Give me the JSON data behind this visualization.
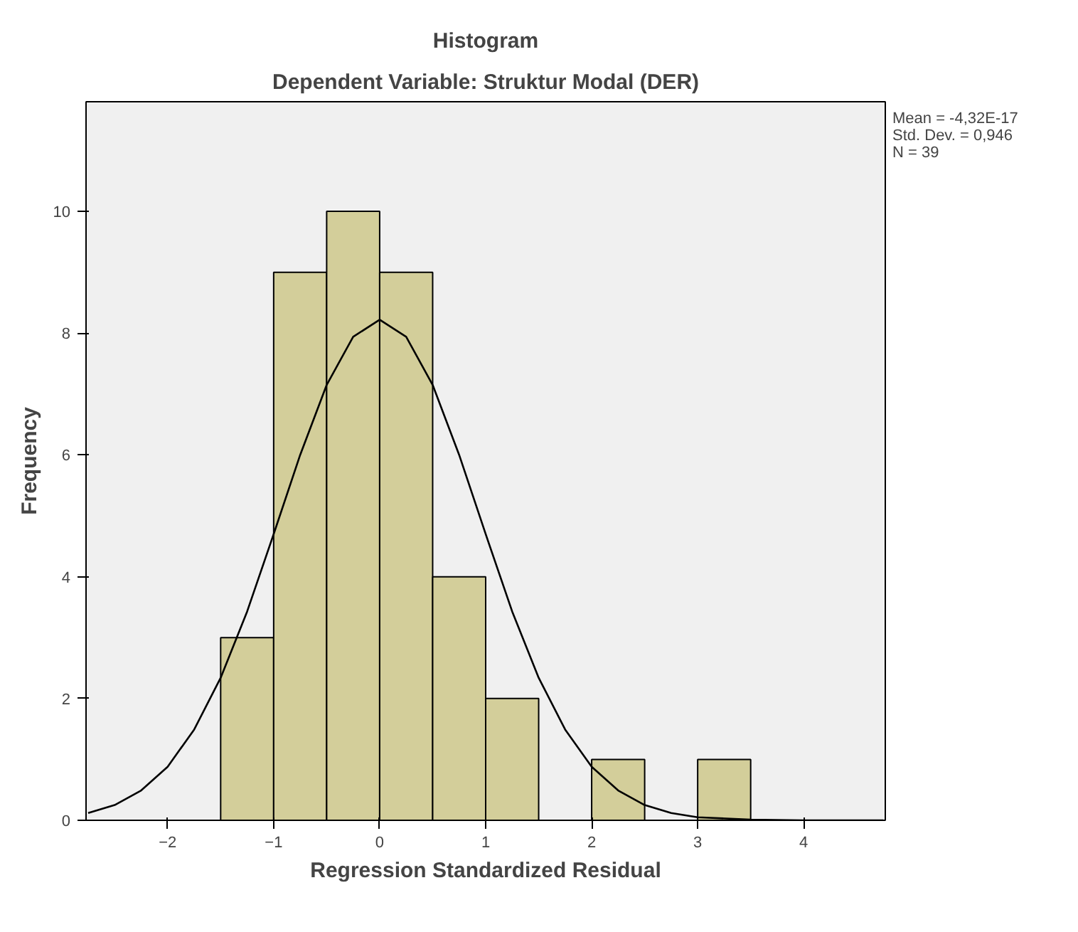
{
  "chart_data": {
    "type": "histogram",
    "title": "Histogram",
    "subtitle": "Dependent Variable: Struktur Modal (DER)",
    "xlabel": "Regression Standardized Residual",
    "ylabel": "Frequency",
    "bins": [
      -1.5,
      -1.0,
      -0.5,
      0.0,
      0.5,
      1.0,
      1.5,
      2.0,
      2.5,
      3.0,
      3.5
    ],
    "values": [
      3,
      9,
      10,
      9,
      4,
      2,
      0,
      1,
      0,
      1
    ],
    "color": "#d3ce9a",
    "series": [
      {
        "type": "line",
        "color": "#000000",
        "x": [
          -2.75,
          -2.5,
          -2.25,
          -2.0,
          -1.75,
          -1.5,
          -1.25,
          -1.0,
          -0.75,
          -0.5,
          -0.25,
          0.0,
          0.25,
          0.5,
          0.75,
          1.0,
          1.25,
          1.5,
          1.75,
          2.0,
          2.25,
          2.5,
          2.75,
          3.0,
          3.5,
          4.0,
          4.75
        ],
        "values": [
          0.12,
          0.25,
          0.49,
          0.88,
          1.49,
          2.34,
          3.43,
          4.7,
          6.0,
          7.15,
          7.94,
          8.22,
          7.94,
          7.15,
          6.0,
          4.7,
          3.43,
          2.34,
          1.49,
          0.88,
          0.49,
          0.25,
          0.12,
          0.05,
          0.01,
          0.0,
          0.0
        ]
      }
    ],
    "xlim": [
      -2.77,
      4.77
    ],
    "ylim": [
      0,
      11.8
    ],
    "xticks": [
      -2,
      -1,
      0,
      1,
      2,
      3,
      4
    ],
    "yticks": [
      0,
      2,
      4,
      6,
      8,
      10
    ],
    "annotations": [
      "Mean = -4,32E-17",
      "Std. Dev. = 0,946",
      "N = 39"
    ],
    "grid": false
  }
}
